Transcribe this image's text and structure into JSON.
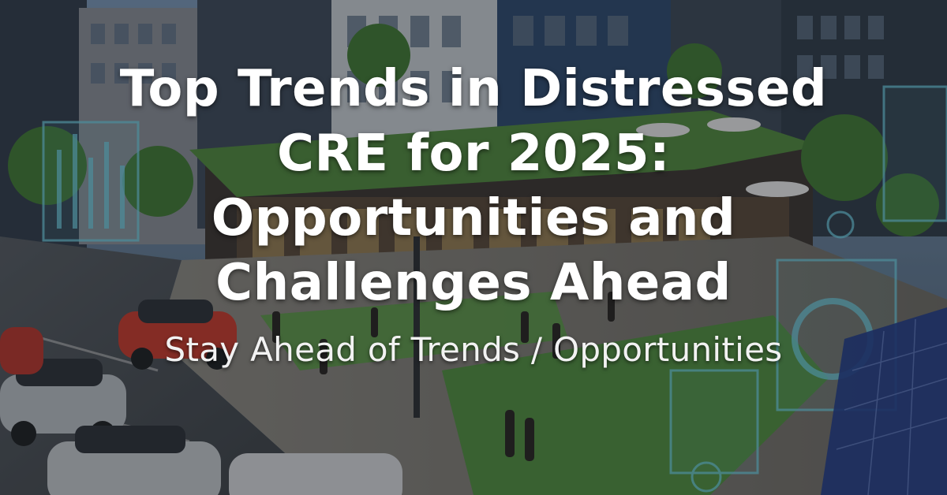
{
  "banner": {
    "headline_lines": [
      "Top Trends in Distressed",
      "CRE for 2025:",
      "Opportunities and",
      "Challenges Ahead"
    ],
    "subheadline": "Stay Ahead of Trends / Opportunities"
  },
  "colors": {
    "text": "#ffffff",
    "sky": "#6f8fb0",
    "building": "#3b4654",
    "greenery": "#4f8a3c",
    "street": "#4a4f55",
    "accent_car": "#c9392b",
    "holo": "#6fd3e6"
  }
}
